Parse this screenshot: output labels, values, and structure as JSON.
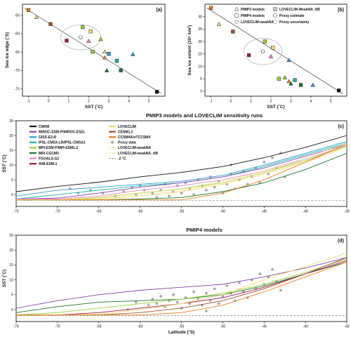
{
  "figure": {
    "panel_labels": [
      "(a)",
      "(b)",
      "(c)",
      "(d)"
    ],
    "title_c": "PMIP3 models and LOVECLIM sensitivity runs",
    "title_d": "PMIP4 models"
  },
  "colors": {
    "CNRM": "#111111",
    "MIROC": "#8e44ad",
    "GISS": "#2e9bd6",
    "IPSL": "#13b5a8",
    "MPI": "#9acd32",
    "MRI": "#1b7a2e",
    "FGOALS": "#e987c4",
    "AWI": "#a3164f",
    "LOVECLIM": "#f7da6b",
    "CESM": "#a0522d",
    "CCSM": "#f07f1c",
    "proxy": "#aaaaaa"
  },
  "chart_data": [
    {
      "id": "a",
      "type": "scatter",
      "xlabel": "SST (˚C)",
      "ylabel": "Sea ice edge (˚S)",
      "xlim": [
        -1.3,
        5.8
      ],
      "ylim": [
        -77,
        -52
      ],
      "xticks": [
        -1,
        0,
        1,
        2,
        3,
        4,
        5
      ],
      "yticks": [
        -55,
        -60,
        -65,
        -70,
        -75
      ],
      "points": [
        {
          "x": -1.0,
          "y": -53.6,
          "marker": "square",
          "color": "#f07f1c"
        },
        {
          "x": -0.6,
          "y": -55.5,
          "marker": "triangle",
          "color": "#f7da6b"
        },
        {
          "x": 0.1,
          "y": -57.4,
          "marker": "square",
          "color": "#a0522d"
        },
        {
          "x": 0.9,
          "y": -61.9,
          "marker": "square",
          "color": "#a3164f"
        },
        {
          "x": 1.7,
          "y": -58.2,
          "marker": "square",
          "color": "#9acd32"
        },
        {
          "x": 2.1,
          "y": -59.4,
          "marker": "square",
          "color": "#f7da6b"
        },
        {
          "x": 2.0,
          "y": -62.0,
          "marker": "triangle",
          "color": "#e987c4"
        },
        {
          "x": 2.2,
          "y": -64.9,
          "marker": "square",
          "color": "#9acd32"
        },
        {
          "x": 2.6,
          "y": -61.5,
          "marker": "triangle",
          "color": "#9acd32"
        },
        {
          "x": 2.8,
          "y": -64.9,
          "marker": "triangle",
          "color": "#f7da6b"
        },
        {
          "x": 2.8,
          "y": -66.5,
          "marker": "triangle",
          "color": "#f07f1c"
        },
        {
          "x": 3.0,
          "y": -65.5,
          "marker": "square",
          "color": "#2e9bd6"
        },
        {
          "x": 2.9,
          "y": -70.0,
          "marker": "triangle",
          "color": "#1b7a2e"
        },
        {
          "x": 3.4,
          "y": -67.4,
          "marker": "square",
          "color": "#13b5a8"
        },
        {
          "x": 3.6,
          "y": -70.0,
          "marker": "square",
          "color": "#1b7a2e"
        },
        {
          "x": 4.2,
          "y": -65.6,
          "marker": "triangle",
          "color": "#2e9bd6"
        },
        {
          "x": 5.4,
          "y": -75.8,
          "marker": "square",
          "color": "#111111"
        }
      ],
      "regression": [
        [
          -1.2,
          -53.0
        ],
        [
          5.6,
          -76.2
        ]
      ],
      "proxy_estimate": {
        "x": 1.6,
        "y": -61.0
      },
      "proxy_uncertainty_radius": {
        "x": 1.0,
        "y": 3.4
      }
    },
    {
      "id": "b",
      "type": "scatter",
      "xlabel": "SST (˚C)",
      "ylabel": "Sea ice extent (10⁶ km²)",
      "xlim": [
        -1.3,
        5.8
      ],
      "ylim": [
        -2,
        35
      ],
      "xticks": [
        -1,
        0,
        1,
        2,
        3,
        4,
        5
      ],
      "yticks": [
        0,
        5,
        10,
        15,
        20,
        25,
        30
      ],
      "points": [
        {
          "x": -1.0,
          "y": 33.5,
          "marker": "square",
          "color": "#f07f1c"
        },
        {
          "x": -0.6,
          "y": 27.0,
          "marker": "triangle",
          "color": "#f7da6b"
        },
        {
          "x": 0.1,
          "y": 24.0,
          "marker": "square",
          "color": "#a0522d"
        },
        {
          "x": 0.9,
          "y": 14.5,
          "marker": "square",
          "color": "#a3164f"
        },
        {
          "x": 1.7,
          "y": 20.0,
          "marker": "square",
          "color": "#9acd32"
        },
        {
          "x": 2.1,
          "y": 17.5,
          "marker": "square",
          "color": "#f7da6b"
        },
        {
          "x": 2.0,
          "y": 14.0,
          "marker": "triangle",
          "color": "#e987c4"
        },
        {
          "x": 2.4,
          "y": 5.0,
          "marker": "square",
          "color": "#9acd32"
        },
        {
          "x": 2.7,
          "y": 5.5,
          "marker": "triangle",
          "color": "#9acd32"
        },
        {
          "x": 2.9,
          "y": 4.0,
          "marker": "triangle",
          "color": "#f07f1c"
        },
        {
          "x": 2.9,
          "y": 12.5,
          "marker": "triangle",
          "color": "#2e9bd6"
        },
        {
          "x": 3.0,
          "y": 3.0,
          "marker": "triangle",
          "color": "#1b7a2e"
        },
        {
          "x": 3.2,
          "y": 4.5,
          "marker": "square",
          "color": "#13b5a8"
        },
        {
          "x": 3.5,
          "y": 2.5,
          "marker": "square",
          "color": "#1b7a2e"
        },
        {
          "x": 4.1,
          "y": 2.5,
          "marker": "triangle",
          "color": "#2e9bd6"
        },
        {
          "x": 5.4,
          "y": 0.3,
          "marker": "square",
          "color": "#111111"
        }
      ],
      "regression": [
        [
          -1.2,
          33.5
        ],
        [
          5.6,
          -1.0
        ]
      ],
      "proxy_estimate": {
        "x": 1.6,
        "y": 16.0
      },
      "proxy_uncertainty_radius": {
        "x": 0.95,
        "y": 5.3
      }
    },
    {
      "id": "c",
      "type": "line",
      "title": "PMIP3 models and LOVECLIM sensitivity runs",
      "xlabel": "",
      "ylabel": "SST (˚C)",
      "xlim": [
        -75,
        -35
      ],
      "ylim": [
        -4,
        25
      ],
      "xticks": [
        -75,
        -70,
        -65,
        -60,
        -55,
        -50,
        -45,
        -40,
        -35
      ],
      "xticklabels": [
        "-75",
        "-70",
        "-65",
        "-60",
        "-55",
        "-50",
        "-45",
        "-40",
        "-35"
      ],
      "yticks": [
        -5,
        0,
        5,
        10,
        15,
        20,
        25
      ],
      "reference_line": {
        "y": -2,
        "label": "-2 °C"
      },
      "legend": [
        {
          "label": "CNRM",
          "color": "#111111",
          "style": "line"
        },
        {
          "label": "MIROC-ESM-P/MIROC-ES2L",
          "color": "#8e44ad",
          "style": "line"
        },
        {
          "label": "GISS-E2-R",
          "color": "#2e9bd6",
          "style": "line"
        },
        {
          "label": "IPSL-CM5A-LR/IPSL-CM5A2",
          "color": "#13b5a8",
          "style": "line"
        },
        {
          "label": "MPI-ESM-P/MPI-ESM1.2",
          "color": "#9acd32",
          "style": "line"
        },
        {
          "label": "MRI-CGCM3",
          "color": "#1b7a2e",
          "style": "line"
        },
        {
          "label": "FGOALS-G2",
          "color": "#e987c4",
          "style": "line"
        },
        {
          "label": "AWI-ESM-1",
          "color": "#a3164f",
          "style": "line"
        },
        {
          "label": "LOVECLIM",
          "color": "#f7da6b",
          "style": "line"
        },
        {
          "label": "CESM1.2",
          "color": "#a0522d",
          "style": "line"
        },
        {
          "label": "CCSM4/UoTCCSM4",
          "color": "#f07f1c",
          "style": "line"
        },
        {
          "label": "Proxy data",
          "color": "#aaaaaa",
          "style": "marker"
        },
        {
          "label": "LOVECLIM-weakNA",
          "color": "#f7da6b",
          "style": "dotted"
        },
        {
          "label": "LOVECLIM-weakNA_AB",
          "color": "#f7da6b",
          "style": "dashed"
        },
        {
          "label": "-2 °C",
          "color": "#888888",
          "style": "dashed"
        }
      ],
      "x": [
        -75,
        -70,
        -65,
        -60,
        -55,
        -50,
        -45,
        -40,
        -35
      ],
      "series": [
        {
          "name": "CNRM",
          "color": "#111111",
          "values": [
            1.0,
            2.8,
            4.2,
            6.0,
            7.5,
            9.5,
            12.5,
            16.0,
            20.0
          ]
        },
        {
          "name": "GISS-E2-R",
          "color": "#2e9bd6",
          "values": [
            -0.5,
            1.5,
            2.5,
            3.5,
            4.5,
            6.5,
            10.0,
            14.0,
            18.0
          ]
        },
        {
          "name": "IPSL-CM5A-LR/IPSL-CM5A2",
          "color": "#13b5a8",
          "values": [
            -1.5,
            0.0,
            1.5,
            3.0,
            4.0,
            6.0,
            9.5,
            13.5,
            17.5
          ]
        },
        {
          "name": "MIROC-ESM-P/MIROC-ES2L",
          "color": "#8e44ad",
          "values": [
            -1.5,
            -1.2,
            0.5,
            2.5,
            4.0,
            6.0,
            9.0,
            13.0,
            17.0
          ]
        },
        {
          "name": "FGOALS-G2",
          "color": "#e987c4",
          "values": [
            -1.5,
            -1.5,
            -0.5,
            1.5,
            3.0,
            5.0,
            8.0,
            12.0,
            16.5
          ]
        },
        {
          "name": "MPI-ESM-P/MPI-ESM1.2",
          "color": "#9acd32",
          "values": [
            -1.8,
            -1.8,
            -1.0,
            0.5,
            2.0,
            4.0,
            7.5,
            11.5,
            16.5
          ]
        },
        {
          "name": "LOVECLIM",
          "color": "#f7da6b",
          "values": [
            -1.8,
            -1.8,
            -1.5,
            -0.5,
            1.0,
            3.5,
            7.0,
            11.0,
            16.0
          ]
        },
        {
          "name": "MRI-CGCM3",
          "color": "#1b7a2e",
          "values": [
            -1.8,
            -1.8,
            -1.8,
            -1.5,
            -1.0,
            1.0,
            4.0,
            8.5,
            14.0
          ]
        },
        {
          "name": "CCSM4/UoTCCSM4",
          "color": "#f07f1c",
          "values": [
            -1.8,
            -1.8,
            -1.8,
            -1.8,
            -1.8,
            0.5,
            5.0,
            11.0,
            17.0
          ]
        },
        {
          "name": "LOVECLIM-weakNA",
          "color": "#f7da6b",
          "style": "dotted",
          "values": [
            -1.8,
            -1.8,
            -1.5,
            0.0,
            1.5,
            4.0,
            7.5,
            12.0,
            17.0
          ]
        },
        {
          "name": "LOVECLIM-weakNA_AB",
          "color": "#f7da6b",
          "style": "dashed",
          "values": [
            -1.8,
            -1.8,
            -1.2,
            0.5,
            2.0,
            4.5,
            8.0,
            12.5,
            17.5
          ]
        }
      ],
      "proxy_points": [
        [
          -68.5,
          2.0
        ],
        [
          -67.5,
          0.5
        ],
        [
          -66.0,
          1.5
        ],
        [
          -64.5,
          0.5
        ],
        [
          -63.0,
          -0.5
        ],
        [
          -62.0,
          1.0
        ],
        [
          -61.0,
          2.5
        ],
        [
          -60.0,
          3.0
        ],
        [
          -59.5,
          1.5
        ],
        [
          -58.5,
          0.5
        ],
        [
          -57.5,
          1.5
        ],
        [
          -57.0,
          3.5
        ],
        [
          -56.0,
          1.0
        ],
        [
          -55.5,
          3.0
        ],
        [
          -55.0,
          0.5
        ],
        [
          -54.5,
          4.0
        ],
        [
          -54.0,
          2.0
        ],
        [
          -53.5,
          0.0
        ],
        [
          -53.0,
          5.0
        ],
        [
          -52.5,
          3.0
        ],
        [
          -52.0,
          1.5
        ],
        [
          -51.5,
          6.0
        ],
        [
          -51.0,
          2.5
        ],
        [
          -50.5,
          4.5
        ],
        [
          -50.0,
          0.5
        ],
        [
          -49.5,
          3.5
        ],
        [
          -49.0,
          7.0
        ],
        [
          -48.5,
          2.0
        ],
        [
          -48.0,
          5.0
        ],
        [
          -47.5,
          8.0
        ],
        [
          -47.0,
          3.5
        ],
        [
          -46.5,
          6.0
        ],
        [
          -46.0,
          9.0
        ],
        [
          -45.5,
          4.0
        ],
        [
          -45.0,
          11.0
        ],
        [
          -44.5,
          7.0
        ],
        [
          -44.0,
          12.5
        ],
        [
          -43.5,
          9.0
        ],
        [
          -43.0,
          14.0
        ],
        [
          -42.5,
          6.0
        ],
        [
          -58.0,
          -1.0
        ],
        [
          -56.5,
          -0.5
        ],
        [
          -60.5,
          0.0
        ],
        [
          -49.0,
          10.0
        ]
      ]
    },
    {
      "id": "d",
      "type": "line",
      "title": "PMIP4 models",
      "xlabel": "Latitude (˚S)",
      "ylabel": "SST (˚C)",
      "xlim": [
        -75,
        -35
      ],
      "ylim": [
        -4,
        25
      ],
      "xticks": [
        -75,
        -70,
        -65,
        -60,
        -55,
        -50,
        -45,
        -40,
        -35
      ],
      "xticklabels": [
        "-75",
        "-70",
        "-65",
        "-60",
        "-55",
        "-50",
        "-45",
        "-40",
        "-35"
      ],
      "yticks": [
        -5,
        0,
        5,
        10,
        15,
        20,
        25
      ],
      "reference_line": {
        "y": -2
      },
      "x": [
        -75,
        -70,
        -65,
        -60,
        -55,
        -50,
        -45,
        -40,
        -35
      ],
      "series": [
        {
          "name": "MIROC-ESM-P/MIROC-ES2L",
          "color": "#8e44ad",
          "values": [
            0.5,
            3.0,
            5.0,
            6.5,
            7.5,
            8.5,
            11.0,
            14.0,
            17.5
          ]
        },
        {
          "name": "MRI-CGCM3",
          "color": "#1b7a2e",
          "values": [
            -1.0,
            1.0,
            2.5,
            3.0,
            3.5,
            5.0,
            8.0,
            12.0,
            16.0
          ]
        },
        {
          "name": "MPI-ESM-P/MPI-ESM1.2",
          "color": "#9acd32",
          "values": [
            -1.8,
            -1.0,
            0.5,
            2.0,
            3.5,
            5.5,
            8.5,
            12.5,
            17.0
          ]
        },
        {
          "name": "AWI-ESM-1",
          "color": "#a3164f",
          "values": [
            -1.8,
            -1.8,
            -1.0,
            0.5,
            2.0,
            4.0,
            7.5,
            12.0,
            16.5
          ]
        },
        {
          "name": "CESM1.2",
          "color": "#a0522d",
          "values": [
            -1.8,
            -1.8,
            -1.8,
            -1.0,
            0.5,
            3.0,
            7.0,
            12.0,
            17.5
          ]
        },
        {
          "name": "LOVECLIM",
          "color": "#f7da6b",
          "values": [
            -1.8,
            -1.8,
            -1.5,
            0.0,
            2.0,
            5.0,
            10.0,
            14.5,
            19.0
          ]
        },
        {
          "name": "CCSM4/UoTCCSM4",
          "color": "#f07f1c",
          "values": [
            -1.8,
            -1.8,
            -1.8,
            -1.8,
            -1.0,
            1.5,
            6.0,
            11.0,
            16.0
          ]
        }
      ],
      "proxy_points": [
        [
          -59.0,
          1.5
        ],
        [
          -58.5,
          3.5
        ],
        [
          -58.0,
          2.0
        ],
        [
          -57.5,
          4.5
        ],
        [
          -57.0,
          1.0
        ],
        [
          -56.5,
          3.0
        ],
        [
          -56.0,
          5.0
        ],
        [
          -55.5,
          2.5
        ],
        [
          -55.0,
          0.5
        ],
        [
          -54.5,
          4.0
        ],
        [
          -54.0,
          2.0
        ],
        [
          -53.5,
          6.0
        ],
        [
          -53.0,
          3.5
        ],
        [
          -52.5,
          1.5
        ],
        [
          -52.0,
          5.5
        ],
        [
          -51.5,
          3.0
        ],
        [
          -51.0,
          7.0
        ],
        [
          -50.5,
          2.0
        ],
        [
          -50.0,
          4.5
        ],
        [
          -49.5,
          8.0
        ],
        [
          -49.0,
          5.5
        ],
        [
          -48.5,
          3.0
        ],
        [
          -48.0,
          9.0
        ],
        [
          -47.5,
          6.0
        ],
        [
          -47.0,
          4.0
        ],
        [
          -46.5,
          10.0
        ],
        [
          -46.0,
          7.0
        ],
        [
          -45.5,
          12.0
        ],
        [
          -45.0,
          8.5
        ],
        [
          -44.5,
          11.0
        ],
        [
          -44.0,
          13.5
        ],
        [
          -43.5,
          9.5
        ],
        [
          -43.0,
          6.5
        ],
        [
          -61.5,
          0.0
        ],
        [
          -60.5,
          2.5
        ],
        [
          -52.0,
          -0.5
        ]
      ]
    }
  ],
  "legend_ab": [
    {
      "label": "PMIP3 models",
      "marker": "triangle"
    },
    {
      "label": "PMIP4 models",
      "marker": "square"
    },
    {
      "label": "LOVECLIM-weakNA",
      "marker": "diamond"
    },
    {
      "label": "LOVECLIM-WeakNA_AB",
      "marker": "square-x"
    },
    {
      "label": "Proxy estimate",
      "marker": "circle"
    },
    {
      "label": "Proxy uncertainty",
      "marker": "circle-light"
    }
  ]
}
